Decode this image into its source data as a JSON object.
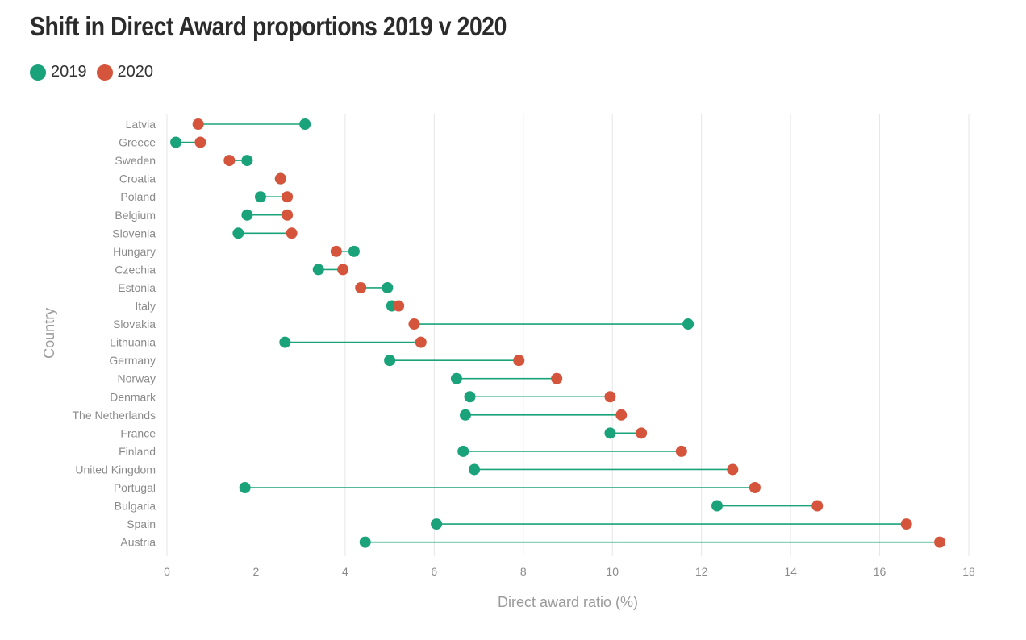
{
  "chart_data": {
    "type": "dumbbell",
    "title": "Shift in Direct Award proportions 2019 v 2020",
    "xlabel": "Direct award ratio (%)",
    "ylabel": "Country",
    "xlim": [
      0,
      18
    ],
    "xticks": [
      "0",
      "2",
      "4",
      "6",
      "8",
      "10",
      "12",
      "14",
      "16",
      "18"
    ],
    "grid": true,
    "legend_position": "top-left",
    "series": [
      {
        "name": "2019",
        "color": "#1aa37a"
      },
      {
        "name": "2020",
        "color": "#d5543c"
      }
    ],
    "categories": [
      "Latvia",
      "Greece",
      "Sweden",
      "Croatia",
      "Poland",
      "Belgium",
      "Slovenia",
      "Hungary",
      "Czechia",
      "Estonia",
      "Italy",
      "Slovakia",
      "Lithuania",
      "Germany",
      "Norway",
      "Denmark",
      "The Netherlands",
      "France",
      "Finland",
      "United Kingdom",
      "Portugal",
      "Bulgaria",
      "Spain",
      "Austria"
    ],
    "values_2019": [
      3.1,
      0.2,
      1.8,
      2.55,
      2.1,
      1.8,
      1.6,
      4.2,
      3.4,
      4.95,
      5.05,
      11.7,
      2.65,
      5.0,
      6.5,
      6.8,
      6.7,
      9.95,
      6.65,
      6.9,
      1.75,
      12.35,
      6.05,
      4.45
    ],
    "values_2020": [
      0.7,
      0.75,
      1.4,
      2.55,
      2.7,
      2.7,
      2.8,
      3.8,
      3.95,
      4.35,
      5.2,
      5.55,
      5.7,
      7.9,
      8.75,
      9.95,
      10.2,
      10.65,
      11.55,
      12.7,
      13.2,
      14.6,
      16.6,
      17.35
    ]
  }
}
